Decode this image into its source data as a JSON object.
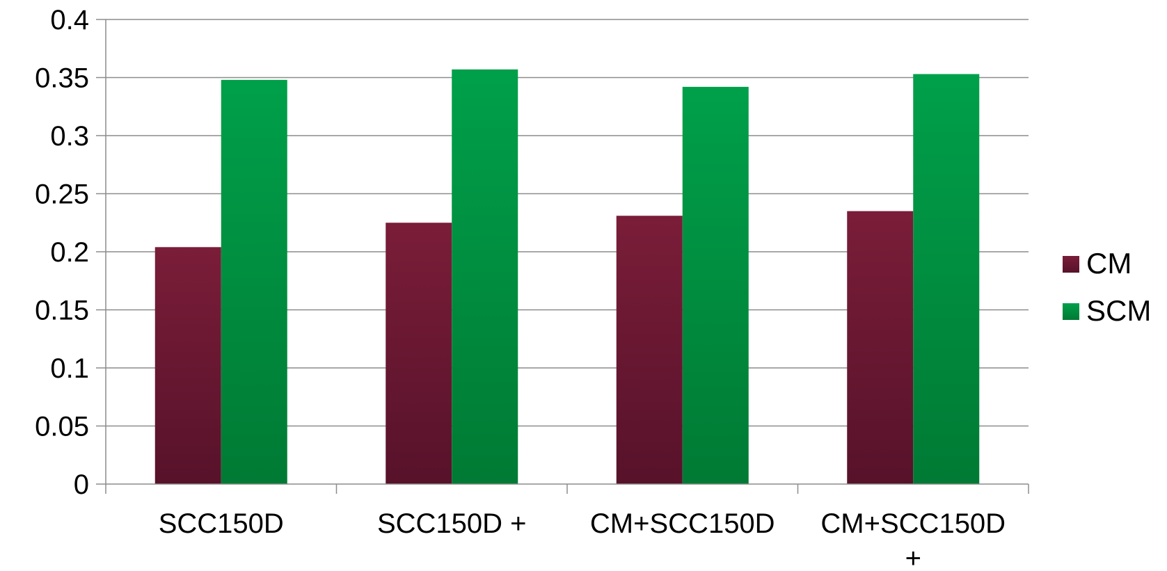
{
  "chart_data": {
    "type": "bar",
    "categories": [
      [
        "SCC150D"
      ],
      [
        "SCC150D +"
      ],
      [
        "CM+SCC150D"
      ],
      [
        "CM+SCC150D",
        "+"
      ]
    ],
    "series": [
      {
        "name": "CM",
        "values": [
          0.204,
          0.225,
          0.231,
          0.235
        ],
        "color": "#6b1a32"
      },
      {
        "name": "SCM",
        "values": [
          0.348,
          0.357,
          0.342,
          0.353
        ],
        "color": "#009a44"
      }
    ],
    "ylim": [
      0,
      0.4
    ],
    "yticks": [
      "0",
      "0.05",
      "0.1",
      "0.15",
      "0.2",
      "0.25",
      "0.3",
      "0.35",
      "0.4"
    ],
    "ytick_values": [
      0,
      0.05,
      0.1,
      0.15,
      0.2,
      0.25,
      0.3,
      0.35,
      0.4
    ],
    "grid": true,
    "legend_position": "right",
    "title": "",
    "xlabel": "",
    "ylabel": ""
  }
}
